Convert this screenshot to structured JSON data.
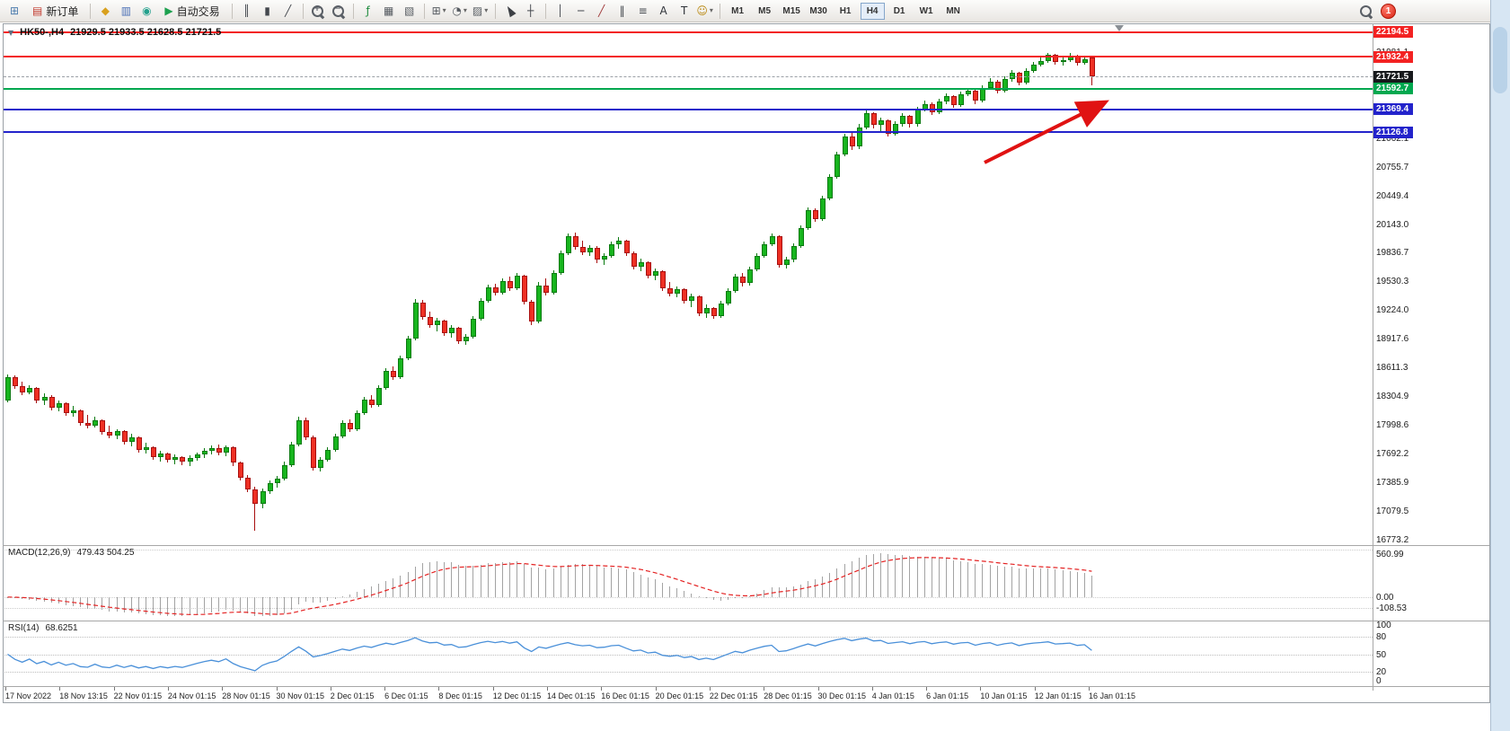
{
  "toolbar": {
    "badge": "1",
    "timeframes": [
      "M1",
      "M5",
      "M15",
      "M30",
      "H1",
      "H4",
      "D1",
      "W1",
      "MN"
    ],
    "active_timeframe": "H4",
    "items": [
      {
        "t": "icon",
        "name": "new-chart-icon",
        "g": "⊞",
        "c": "#4e7dae"
      },
      {
        "t": "btn",
        "name": "new-order-button",
        "label": "新订单",
        "g": "▤",
        "c": "#c23a2e"
      },
      {
        "t": "sep"
      },
      {
        "t": "icon",
        "name": "metaeditor-icon",
        "g": "◆",
        "c": "#d9a01d"
      },
      {
        "t": "icon",
        "name": "market-watch-icon",
        "g": "▥",
        "c": "#4a6fb5"
      },
      {
        "t": "icon",
        "name": "community-icon",
        "g": "◉",
        "c": "#23a08c"
      },
      {
        "t": "btn",
        "name": "autotrading-button",
        "label": "自动交易",
        "g": "▶",
        "c": "#1ca04e"
      },
      {
        "t": "sep"
      },
      {
        "t": "icon",
        "name": "bar-chart-icon",
        "g": "║",
        "c": "#44484e"
      },
      {
        "t": "icon",
        "name": "candlestick-chart-icon",
        "g": "▮",
        "c": "#44484e"
      },
      {
        "t": "icon",
        "name": "line-chart-icon",
        "g": "╱",
        "c": "#44484e"
      },
      {
        "t": "sep"
      },
      {
        "t": "mag",
        "name": "zoom-in-icon",
        "sign": "+"
      },
      {
        "t": "mag",
        "name": "zoom-out-icon",
        "sign": "−"
      },
      {
        "t": "sep"
      },
      {
        "t": "icon",
        "name": "indicators-icon",
        "g": "ƒ",
        "c": "#1d8a3c"
      },
      {
        "t": "icon",
        "name": "tile-windows-icon",
        "g": "▦",
        "c": "#565b61"
      },
      {
        "t": "icon",
        "name": "cascade-windows-icon",
        "g": "▧",
        "c": "#565b61"
      },
      {
        "t": "sep"
      },
      {
        "t": "icon",
        "name": "new-window-icon",
        "g": "⊞",
        "c": "#565b61",
        "dd": true
      },
      {
        "t": "icon",
        "name": "periods-icon",
        "g": "◔",
        "c": "#565b61",
        "dd": true
      },
      {
        "t": "icon",
        "name": "templates-icon",
        "g": "▨",
        "c": "#565b61",
        "dd": true
      },
      {
        "t": "sep"
      },
      {
        "t": "cursor",
        "name": "cursor-icon"
      },
      {
        "t": "icon",
        "name": "crosshair-icon",
        "g": "┼",
        "c": "#44484e"
      },
      {
        "t": "sep"
      },
      {
        "t": "icon",
        "name": "vertical-line-icon",
        "g": "│",
        "c": "#44484e"
      },
      {
        "t": "icon",
        "name": "horizontal-line-icon",
        "g": "─",
        "c": "#44484e"
      },
      {
        "t": "icon",
        "name": "trendline-icon",
        "g": "╱",
        "c": "#a03a3a"
      },
      {
        "t": "icon",
        "name": "channel-icon",
        "g": "‖",
        "c": "#44484e"
      },
      {
        "t": "icon",
        "name": "fibonacci-icon",
        "g": "≡",
        "c": "#44484e"
      },
      {
        "t": "icon",
        "name": "text-icon",
        "g": "A",
        "c": "#2e3238"
      },
      {
        "t": "icon",
        "name": "label-icon",
        "g": "T",
        "c": "#2e3238"
      },
      {
        "t": "icon",
        "name": "arrows-icon",
        "g": "☺",
        "c": "#b8860b",
        "dd": true
      },
      {
        "t": "sep"
      },
      {
        "t": "timeframes"
      }
    ]
  },
  "chart": {
    "one_click_icon": "▼",
    "symbol_period": "HK50-,H4",
    "ohlc": "21929.5 21933.5 21628.5 21721.5",
    "axis_values": [
      21981.1,
      21674.8,
      21368.4,
      21062.1,
      20755.7,
      20449.4,
      20143.0,
      19836.7,
      19530.3,
      19224.0,
      18917.6,
      18611.3,
      18304.9,
      17998.6,
      17692.2,
      17385.9,
      17079.5,
      16773.2
    ],
    "price_lines": [
      {
        "price": 22194.5,
        "label": "22194.5",
        "color": "#f32222",
        "width": 2,
        "style": "solid"
      },
      {
        "price": 21932.4,
        "label": "21932.4",
        "color": "#f32222",
        "width": 2,
        "style": "solid"
      },
      {
        "price": 21721.5,
        "label": "21721.5",
        "color": "#9aa0a6",
        "width": 1,
        "style": "dashed",
        "box": "#17191c"
      },
      {
        "price": 21592.7,
        "label": "21592.7",
        "color": "#00a84f",
        "width": 2,
        "style": "solid"
      },
      {
        "price": 21369.4,
        "label": "21369.4",
        "color": "#2323cb",
        "width": 2,
        "style": "solid"
      },
      {
        "price": 21126.8,
        "label": "21126.8",
        "color": "#2323cb",
        "width": 2,
        "style": "solid"
      }
    ]
  },
  "indicators": {
    "macd": {
      "title": "MACD(12,26,9)",
      "values": "479.43 504.25",
      "axis": [
        "560.99",
        "0.00",
        "-108.53"
      ],
      "axis_values": [
        560.99,
        0,
        -108.53
      ],
      "histogram_color": "#a3a3a3",
      "signal_color": "#e42222"
    },
    "rsi": {
      "title": "RSI(14)",
      "value": "68.6251",
      "axis": [
        "100",
        "80",
        "50",
        "20",
        "0"
      ],
      "axis_values": [
        100,
        80,
        50,
        20,
        0
      ],
      "levels": [
        80,
        50,
        20
      ],
      "line_color": "#4a90d9"
    }
  },
  "annotation": {
    "arrow_color": "#e01212"
  },
  "chart_data": {
    "type": "candlestick",
    "symbol": "HK50-",
    "timeframe": "H4",
    "title": "HK50-,H4 21929.5 21933.5 21628.5 21721.5",
    "ylim": [
      16740,
      22280
    ],
    "colors": {
      "up": {
        "fill": "#17b51e",
        "edge": "#0a7a10",
        "wick": "#0a7a10"
      },
      "down": {
        "fill": "#ee3024",
        "edge": "#a80f0f",
        "wick": "#a80f0f"
      }
    },
    "x_labels": [
      "17 Nov 2022",
      "18 Nov 13:15",
      "22 Nov 01:15",
      "24 Nov 01:15",
      "28 Nov 01:15",
      "30 Nov 01:15",
      "2 Dec 01:15",
      "6 Dec 01:15",
      "8 Dec 01:15",
      "12 Dec 01:15",
      "14 Dec 01:15",
      "16 Dec 01:15",
      "20 Dec 01:15",
      "22 Dec 01:15",
      "28 Dec 01:15",
      "30 Dec 01:15",
      "4 Jan 01:15",
      "6 Jan 01:15",
      "10 Jan 01:15",
      "12 Jan 01:15",
      "16 Jan 01:15"
    ],
    "candles": [
      [
        18260,
        18540,
        18240,
        18510
      ],
      [
        18510,
        18530,
        18380,
        18410
      ],
      [
        18410,
        18460,
        18310,
        18340
      ],
      [
        18340,
        18420,
        18320,
        18390
      ],
      [
        18390,
        18400,
        18230,
        18260
      ],
      [
        18260,
        18330,
        18210,
        18300
      ],
      [
        18300,
        18310,
        18150,
        18180
      ],
      [
        18180,
        18260,
        18140,
        18230
      ],
      [
        18230,
        18240,
        18090,
        18120
      ],
      [
        18120,
        18200,
        18080,
        18150
      ],
      [
        18150,
        18160,
        17990,
        18020
      ],
      [
        18020,
        18100,
        17960,
        17990
      ],
      [
        17990,
        18080,
        17970,
        18050
      ],
      [
        18050,
        18060,
        17890,
        17920
      ],
      [
        17920,
        17990,
        17850,
        17880
      ],
      [
        17880,
        17950,
        17840,
        17930
      ],
      [
        17930,
        17940,
        17790,
        17820
      ],
      [
        17820,
        17900,
        17770,
        17860
      ],
      [
        17860,
        17870,
        17700,
        17730
      ],
      [
        17730,
        17810,
        17690,
        17760
      ],
      [
        17760,
        17770,
        17620,
        17650
      ],
      [
        17650,
        17720,
        17600,
        17690
      ],
      [
        17690,
        17700,
        17590,
        17620
      ],
      [
        17620,
        17680,
        17580,
        17650
      ],
      [
        17650,
        17660,
        17570,
        17600
      ],
      [
        17600,
        17670,
        17560,
        17640
      ],
      [
        17640,
        17700,
        17610,
        17680
      ],
      [
        17680,
        17750,
        17640,
        17720
      ],
      [
        17720,
        17780,
        17680,
        17750
      ],
      [
        17750,
        17790,
        17670,
        17700
      ],
      [
        17700,
        17780,
        17660,
        17760
      ],
      [
        17760,
        17770,
        17560,
        17590
      ],
      [
        17590,
        17600,
        17400,
        17430
      ],
      [
        17430,
        17460,
        17280,
        17310
      ],
      [
        17310,
        17340,
        16860,
        17150
      ],
      [
        17150,
        17320,
        17100,
        17290
      ],
      [
        17290,
        17400,
        17260,
        17370
      ],
      [
        17370,
        17450,
        17330,
        17420
      ],
      [
        17420,
        17600,
        17400,
        17570
      ],
      [
        17570,
        17820,
        17550,
        17790
      ],
      [
        17790,
        18080,
        17770,
        18050
      ],
      [
        18050,
        18070,
        17830,
        17860
      ],
      [
        17860,
        17880,
        17510,
        17540
      ],
      [
        17540,
        17650,
        17500,
        17620
      ],
      [
        17620,
        17760,
        17600,
        17730
      ],
      [
        17730,
        17900,
        17710,
        17870
      ],
      [
        17870,
        18050,
        17850,
        18020
      ],
      [
        18020,
        18060,
        17920,
        17950
      ],
      [
        17950,
        18150,
        17930,
        18120
      ],
      [
        18120,
        18300,
        18100,
        18270
      ],
      [
        18270,
        18310,
        18180,
        18210
      ],
      [
        18210,
        18420,
        18190,
        18390
      ],
      [
        18390,
        18600,
        18370,
        18570
      ],
      [
        18570,
        18620,
        18480,
        18510
      ],
      [
        18510,
        18740,
        18490,
        18710
      ],
      [
        18710,
        18950,
        18690,
        18920
      ],
      [
        18920,
        19340,
        18900,
        19300
      ],
      [
        19300,
        19330,
        19120,
        19150
      ],
      [
        19150,
        19210,
        19030,
        19060
      ],
      [
        19060,
        19140,
        19000,
        19110
      ],
      [
        19110,
        19120,
        18950,
        18980
      ],
      [
        18980,
        19060,
        18930,
        19030
      ],
      [
        19030,
        19040,
        18860,
        18890
      ],
      [
        18890,
        18970,
        18850,
        18940
      ],
      [
        18940,
        19160,
        18920,
        19130
      ],
      [
        19130,
        19350,
        19110,
        19320
      ],
      [
        19320,
        19500,
        19300,
        19470
      ],
      [
        19470,
        19510,
        19380,
        19410
      ],
      [
        19410,
        19560,
        19390,
        19530
      ],
      [
        19530,
        19580,
        19430,
        19460
      ],
      [
        19460,
        19620,
        19440,
        19590
      ],
      [
        19590,
        19600,
        19280,
        19310
      ],
      [
        19310,
        19330,
        19060,
        19100
      ],
      [
        19100,
        19520,
        19080,
        19490
      ],
      [
        19490,
        19560,
        19380,
        19410
      ],
      [
        19410,
        19650,
        19390,
        19620
      ],
      [
        19620,
        19860,
        19600,
        19830
      ],
      [
        19830,
        20040,
        19810,
        20010
      ],
      [
        20010,
        20050,
        19870,
        19900
      ],
      [
        19900,
        19970,
        19810,
        19840
      ],
      [
        19840,
        19920,
        19800,
        19890
      ],
      [
        19890,
        19910,
        19730,
        19760
      ],
      [
        19760,
        19830,
        19710,
        19800
      ],
      [
        19800,
        19960,
        19780,
        19930
      ],
      [
        19930,
        20000,
        19880,
        19970
      ],
      [
        19970,
        19980,
        19800,
        19830
      ],
      [
        19830,
        19850,
        19660,
        19690
      ],
      [
        19690,
        19770,
        19640,
        19740
      ],
      [
        19740,
        19750,
        19560,
        19590
      ],
      [
        19590,
        19670,
        19540,
        19640
      ],
      [
        19640,
        19650,
        19430,
        19460
      ],
      [
        19460,
        19520,
        19370,
        19400
      ],
      [
        19400,
        19480,
        19360,
        19450
      ],
      [
        19450,
        19460,
        19290,
        19320
      ],
      [
        19320,
        19400,
        19260,
        19370
      ],
      [
        19370,
        19380,
        19160,
        19190
      ],
      [
        19190,
        19280,
        19140,
        19250
      ],
      [
        19250,
        19260,
        19130,
        19160
      ],
      [
        19160,
        19320,
        19140,
        19290
      ],
      [
        19290,
        19460,
        19270,
        19430
      ],
      [
        19430,
        19610,
        19410,
        19580
      ],
      [
        19580,
        19620,
        19480,
        19510
      ],
      [
        19510,
        19690,
        19490,
        19660
      ],
      [
        19660,
        19830,
        19640,
        19800
      ],
      [
        19800,
        19960,
        19780,
        19930
      ],
      [
        19930,
        20040,
        19910,
        20010
      ],
      [
        20010,
        20020,
        19680,
        19710
      ],
      [
        19710,
        19790,
        19670,
        19760
      ],
      [
        19760,
        19940,
        19740,
        19910
      ],
      [
        19910,
        20130,
        19890,
        20100
      ],
      [
        20100,
        20320,
        20080,
        20290
      ],
      [
        20290,
        20310,
        20170,
        20200
      ],
      [
        20200,
        20450,
        20180,
        20420
      ],
      [
        20420,
        20680,
        20400,
        20650
      ],
      [
        20650,
        20920,
        20630,
        20890
      ],
      [
        20890,
        21110,
        20870,
        21080
      ],
      [
        21080,
        21120,
        20940,
        20970
      ],
      [
        20970,
        21210,
        20950,
        21180
      ],
      [
        21180,
        21360,
        21160,
        21330
      ],
      [
        21330,
        21340,
        21170,
        21200
      ],
      [
        21200,
        21280,
        21120,
        21250
      ],
      [
        21250,
        21260,
        21080,
        21110
      ],
      [
        21110,
        21240,
        21090,
        21210
      ],
      [
        21210,
        21330,
        21190,
        21300
      ],
      [
        21300,
        21310,
        21180,
        21210
      ],
      [
        21210,
        21400,
        21190,
        21370
      ],
      [
        21370,
        21460,
        21350,
        21430
      ],
      [
        21430,
        21440,
        21310,
        21340
      ],
      [
        21340,
        21480,
        21320,
        21450
      ],
      [
        21450,
        21540,
        21430,
        21510
      ],
      [
        21510,
        21520,
        21390,
        21420
      ],
      [
        21420,
        21560,
        21400,
        21530
      ],
      [
        21530,
        21600,
        21510,
        21570
      ],
      [
        21570,
        21580,
        21430,
        21460
      ],
      [
        21460,
        21630,
        21440,
        21600
      ],
      [
        21600,
        21700,
        21580,
        21670
      ],
      [
        21670,
        21680,
        21540,
        21570
      ],
      [
        21570,
        21720,
        21550,
        21690
      ],
      [
        21690,
        21790,
        21670,
        21760
      ],
      [
        21760,
        21770,
        21630,
        21660
      ],
      [
        21660,
        21810,
        21640,
        21780
      ],
      [
        21780,
        21880,
        21760,
        21850
      ],
      [
        21850,
        21920,
        21830,
        21890
      ],
      [
        21890,
        21977,
        21870,
        21950
      ],
      [
        21950,
        21960,
        21850,
        21880
      ],
      [
        21880,
        21930,
        21840,
        21900
      ],
      [
        21900,
        21970,
        21880,
        21940
      ],
      [
        21940,
        21950,
        21840,
        21870
      ],
      [
        21870,
        21930,
        21850,
        21910
      ],
      [
        21929.5,
        21933.5,
        21628.5,
        21721.5
      ]
    ]
  }
}
